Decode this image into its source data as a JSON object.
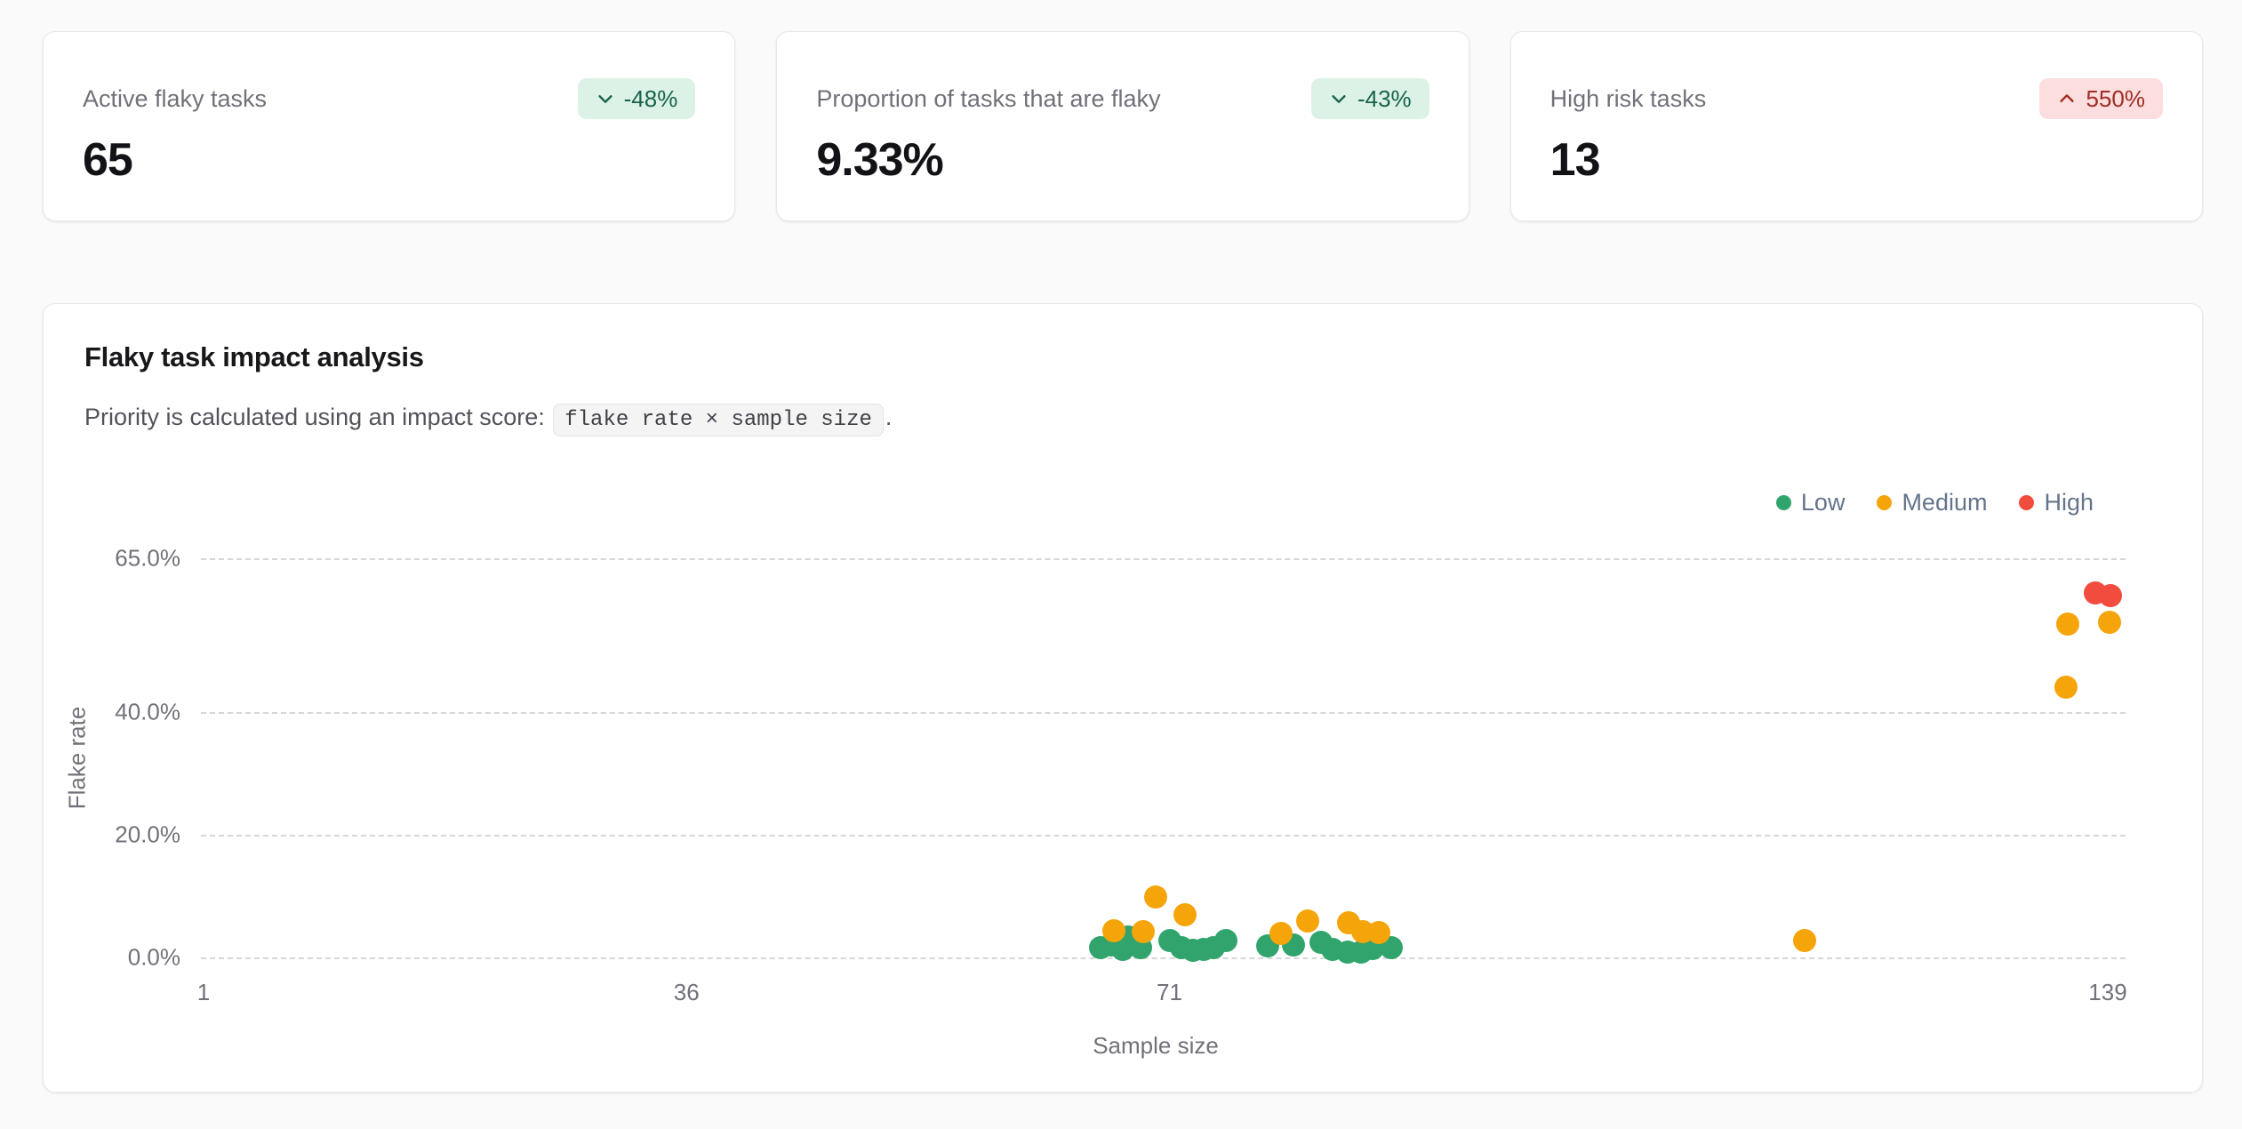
{
  "stat_cards": [
    {
      "label": "Active flaky tasks",
      "value": "65",
      "badge": {
        "text": "-48%",
        "direction": "down",
        "sentiment": "positive"
      }
    },
    {
      "label": "Proportion of tasks that are flaky",
      "value": "9.33%",
      "badge": {
        "text": "-43%",
        "direction": "down",
        "sentiment": "positive"
      }
    },
    {
      "label": "High risk tasks",
      "value": "13",
      "badge": {
        "text": "550%",
        "direction": "up",
        "sentiment": "negative"
      }
    }
  ],
  "analysis_card": {
    "title": "Flaky task impact analysis",
    "subtitle_prefix": "Priority is calculated using an impact score: ",
    "subtitle_code": "flake rate × sample size",
    "subtitle_suffix": "."
  },
  "chart_data": {
    "type": "scatter",
    "xlabel": "Sample size",
    "ylabel": "Flake rate",
    "xlim": [
      1,
      139
    ],
    "ylim": [
      0,
      65
    ],
    "x_ticks": [
      1,
      36,
      71,
      139
    ],
    "y_ticks": [
      0,
      20,
      40,
      65
    ],
    "y_tick_labels": [
      "0.0%",
      "20.0%",
      "40.0%",
      "65.0%"
    ],
    "grid": "horizontal-dashed",
    "legend_position": "top-right",
    "series": [
      {
        "name": "Low",
        "color": "#30a46c",
        "points": [
          [
            66,
            1.6
          ],
          [
            66.8,
            2.0
          ],
          [
            67.6,
            1.3
          ],
          [
            68,
            3.4
          ],
          [
            68.9,
            1.6
          ],
          [
            71,
            2.7
          ],
          [
            71.9,
            1.6
          ],
          [
            72.7,
            1.2
          ],
          [
            73.5,
            1.3
          ],
          [
            74.2,
            1.6
          ],
          [
            75.1,
            2.7
          ],
          [
            78.1,
            1.9
          ],
          [
            80,
            2.0
          ],
          [
            82,
            2.4
          ],
          [
            82.8,
            1.3
          ],
          [
            83.9,
            0.9
          ],
          [
            84.9,
            0.9
          ],
          [
            85.7,
            1.4
          ],
          [
            87.1,
            1.6
          ]
        ]
      },
      {
        "name": "Medium",
        "color": "#f5a40a",
        "points": [
          [
            67,
            4.4
          ],
          [
            69.1,
            4.2
          ],
          [
            70,
            9.9
          ],
          [
            72.1,
            7.0
          ],
          [
            79.1,
            3.9
          ],
          [
            81,
            6.0
          ],
          [
            84,
            5.6
          ],
          [
            85,
            4.2
          ],
          [
            86.2,
            4.0
          ],
          [
            117,
            2.8
          ],
          [
            136,
            44.0
          ],
          [
            136.1,
            54.3
          ],
          [
            139.1,
            54.6
          ]
        ]
      },
      {
        "name": "High",
        "color": "#f14c3e",
        "points": [
          [
            138.1,
            59.3
          ],
          [
            139.2,
            58.9
          ]
        ]
      }
    ]
  }
}
